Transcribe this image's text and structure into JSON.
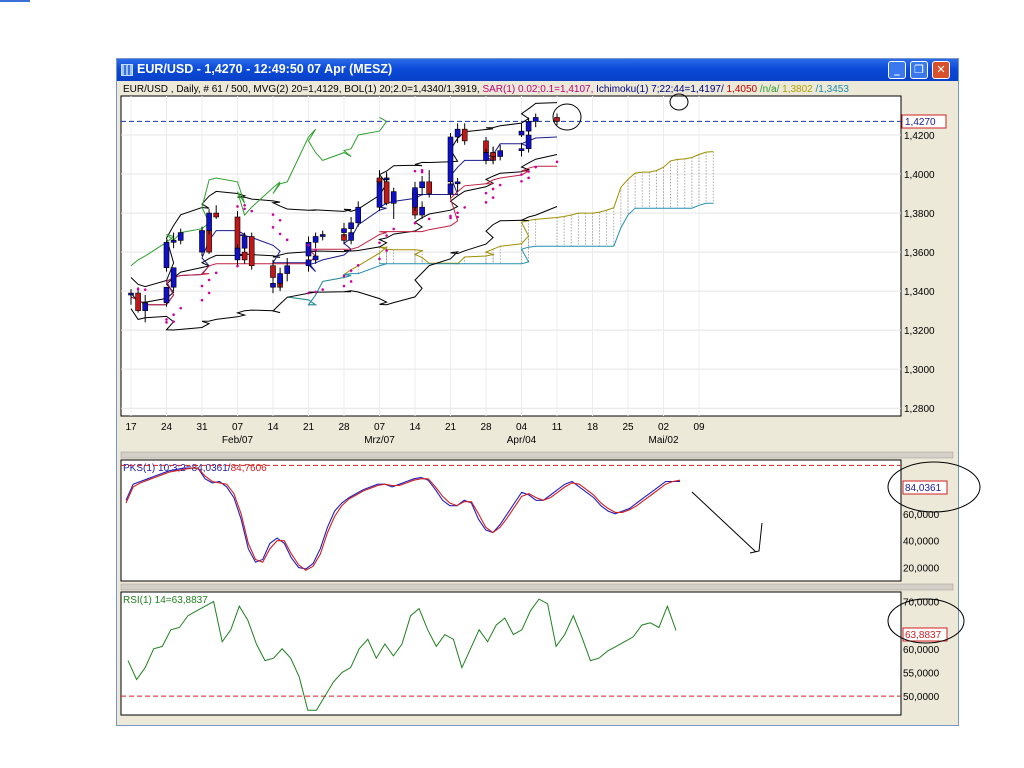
{
  "window": {
    "title": "EUR/USD - 1,4270 - 12:49:50  07 Apr (MESZ)",
    "buttons": {
      "minimize": "_",
      "maximize": "❐",
      "close": "✕"
    }
  },
  "main_chart": {
    "legend": [
      {
        "text": "EUR/USD , Daily, # 61 / 500, MVG(2) 20=1,4129, BOL(1) 20;2.0=1,4340/1,3919, ",
        "color": "#000000"
      },
      {
        "text": "SAR(1) 0.02;0.1=1,4107, ",
        "color": "#c0007a"
      },
      {
        "text": "Ichimoku(1) 7;22;44=1,4197/",
        "color": "#000080"
      },
      {
        "text": "1,4050",
        "color": "#c00000"
      },
      {
        "text": "/n/a/",
        "color": "#2a9a2a"
      },
      {
        "text": "1,3802",
        "color": "#b0a000"
      },
      {
        "text": "/1,3453",
        "color": "#1a8aa8"
      }
    ],
    "current_price": "1,4270",
    "y_ticks": [
      "1,4200",
      "1,4000",
      "1,3800",
      "1,3600",
      "1,3400",
      "1,3200",
      "1,3000",
      "1,2800"
    ],
    "x_ticks": [
      "17",
      "24",
      "31",
      "07",
      "14",
      "21",
      "28",
      "07",
      "14",
      "21",
      "28",
      "04",
      "11",
      "18",
      "25",
      "02",
      "09"
    ],
    "month_labels": [
      "Feb/07",
      "Mrz/07",
      "Apr/04",
      "Mai/02"
    ]
  },
  "stoch_panel": {
    "legend_main": "PKS(1) 10;3;2=84,0361/",
    "legend_signal": "84,7606",
    "current_value": "84,0361",
    "y_ticks": [
      "60,0000",
      "40,0000",
      "20,0000"
    ]
  },
  "rsi_panel": {
    "legend": "RSI(1) 14=63,8837",
    "current_value": "63,8837",
    "y_ticks": [
      "70,0000",
      "60,0000",
      "55,0000",
      "50,0000"
    ]
  },
  "colors": {
    "bull_candle": "#1010c8",
    "bear_candle": "#c01818",
    "sar": "#d000a0",
    "tenkan": "#1a1a8c",
    "kijun": "#c02040",
    "chikou": "#30a030",
    "span_a": "#a09000",
    "span_b": "#2090b0",
    "bollinger": "#000000",
    "stoch_k": "#2020c0",
    "stoch_d": "#d02020",
    "rsi": "#208020",
    "level_line": "#d02020",
    "price_line": "#1a3aa0"
  },
  "chart_data": [
    {
      "type": "candlestick",
      "title": "EUR/USD , Daily",
      "x": [
        "2007-01-17",
        "2007-01-18",
        "2007-01-19",
        "2007-01-22",
        "2007-01-23",
        "2007-01-24",
        "2007-01-25",
        "2007-01-26",
        "2007-01-29",
        "2007-01-30",
        "2007-01-31",
        "2007-02-01",
        "2007-02-02",
        "2007-02-05",
        "2007-02-06",
        "2007-02-07",
        "2007-02-08",
        "2007-02-09",
        "2007-02-12",
        "2007-02-13",
        "2007-02-14",
        "2007-02-15",
        "2007-02-16",
        "2007-02-19",
        "2007-02-20",
        "2007-02-21",
        "2007-02-22",
        "2007-02-23",
        "2007-02-26",
        "2007-02-27",
        "2007-02-28",
        "2007-03-01",
        "2007-03-02",
        "2007-03-05",
        "2007-03-06",
        "2007-03-07",
        "2007-03-08",
        "2007-03-09",
        "2007-03-12",
        "2007-03-13",
        "2007-03-14",
        "2007-03-15",
        "2007-03-16",
        "2007-03-19",
        "2007-03-20",
        "2007-03-21",
        "2007-03-22",
        "2007-03-23",
        "2007-03-26",
        "2007-03-27",
        "2007-03-28",
        "2007-03-29",
        "2007-03-30",
        "2007-04-02",
        "2007-04-03",
        "2007-04-04",
        "2007-04-05",
        "2007-04-06",
        "2007-04-09"
      ],
      "open": [
        1.338,
        1.339,
        1.33,
        1.334,
        1.342,
        1.352,
        1.365,
        1.366,
        1.37,
        1.371,
        1.36,
        1.371,
        1.38,
        1.378,
        1.36,
        1.356,
        1.362,
        1.368,
        1.353,
        1.347,
        1.342,
        1.344,
        1.349,
        1.353,
        1.356,
        1.358,
        1.365,
        1.368,
        1.369,
        1.366,
        1.37,
        1.372,
        1.375,
        1.383,
        1.397,
        1.398,
        1.396,
        1.385,
        1.391,
        1.379,
        1.383,
        1.393,
        1.396,
        1.39,
        1.395,
        1.396,
        1.419,
        1.423,
        1.417,
        1.411,
        1.407,
        1.411,
        1.409,
        1.412,
        1.413,
        1.42,
        1.422,
        1.427,
        1.429
      ],
      "high": [
        1.341,
        1.342,
        1.338,
        1.342,
        1.352,
        1.366,
        1.37,
        1.372,
        1.373,
        1.374,
        1.373,
        1.382,
        1.384,
        1.381,
        1.362,
        1.364,
        1.37,
        1.37,
        1.356,
        1.352,
        1.346,
        1.35,
        1.357,
        1.359,
        1.361,
        1.368,
        1.37,
        1.371,
        1.372,
        1.373,
        1.375,
        1.378,
        1.386,
        1.399,
        1.401,
        1.402,
        1.4,
        1.393,
        1.394,
        1.386,
        1.396,
        1.399,
        1.402,
        1.397,
        1.398,
        1.421,
        1.426,
        1.426,
        1.419,
        1.414,
        1.413,
        1.414,
        1.415,
        1.416,
        1.423,
        1.426,
        1.429,
        1.431,
        1.431
      ],
      "low": [
        1.333,
        1.329,
        1.324,
        1.332,
        1.34,
        1.35,
        1.362,
        1.364,
        1.366,
        1.359,
        1.358,
        1.369,
        1.377,
        1.359,
        1.354,
        1.353,
        1.36,
        1.351,
        1.343,
        1.34,
        1.339,
        1.341,
        1.345,
        1.35,
        1.354,
        1.356,
        1.362,
        1.366,
        1.364,
        1.364,
        1.368,
        1.37,
        1.373,
        1.381,
        1.394,
        1.394,
        1.384,
        1.377,
        1.377,
        1.377,
        1.381,
        1.389,
        1.388,
        1.388,
        1.391,
        1.394,
        1.416,
        1.415,
        1.409,
        1.405,
        1.405,
        1.406,
        1.407,
        1.409,
        1.411,
        1.419,
        1.42,
        1.424,
        1.425
      ],
      "close": [
        1.339,
        1.33,
        1.334,
        1.342,
        1.352,
        1.365,
        1.366,
        1.37,
        1.371,
        1.36,
        1.371,
        1.38,
        1.378,
        1.36,
        1.356,
        1.362,
        1.368,
        1.353,
        1.347,
        1.342,
        1.344,
        1.349,
        1.353,
        1.356,
        1.358,
        1.365,
        1.368,
        1.369,
        1.366,
        1.37,
        1.372,
        1.375,
        1.383,
        1.397,
        1.398,
        1.396,
        1.385,
        1.391,
        1.379,
        1.383,
        1.393,
        1.396,
        1.39,
        1.395,
        1.396,
        1.419,
        1.423,
        1.417,
        1.411,
        1.407,
        1.411,
        1.409,
        1.412,
        1.413,
        1.42,
        1.422,
        1.427,
        1.429,
        1.427
      ],
      "ylim": [
        1.276,
        1.44
      ],
      "ylabel": "",
      "xlabel": ""
    },
    {
      "type": "line",
      "title": "PKS(1) 10;3;2",
      "series": [
        {
          "name": "84,0361",
          "values": [
            70,
            82,
            84,
            86,
            88,
            90,
            92,
            93,
            94,
            94,
            94,
            86,
            83,
            84,
            80,
            72,
            56,
            34,
            24,
            26,
            38,
            42,
            38,
            27,
            20,
            19,
            23,
            34,
            50,
            62,
            68,
            72,
            75,
            78,
            80,
            82,
            82,
            80,
            82,
            84,
            86,
            87,
            85,
            78,
            70,
            66,
            66,
            70,
            68,
            56,
            48,
            46,
            52,
            60,
            68,
            76,
            74,
            70,
            70,
            74,
            78,
            82,
            84,
            80,
            76,
            72,
            66,
            62,
            60,
            62,
            64,
            68,
            72,
            76,
            80,
            84,
            84,
            84
          ]
        },
        {
          "name": "84,7606",
          "values": [
            68,
            80,
            83,
            85,
            87,
            89,
            91,
            92,
            93,
            94,
            94,
            88,
            84,
            83,
            82,
            75,
            60,
            38,
            26,
            24,
            34,
            40,
            40,
            30,
            22,
            18,
            21,
            30,
            46,
            58,
            66,
            71,
            74,
            77,
            79,
            81,
            82,
            81,
            81,
            83,
            85,
            86,
            86,
            80,
            73,
            68,
            66,
            69,
            69,
            60,
            50,
            46,
            50,
            57,
            65,
            73,
            75,
            72,
            70,
            72,
            76,
            80,
            83,
            82,
            78,
            74,
            68,
            64,
            61,
            61,
            63,
            66,
            70,
            74,
            78,
            82,
            84,
            85
          ]
        }
      ],
      "ylim": [
        10,
        100
      ]
    },
    {
      "type": "line",
      "title": "RSI(1) 14",
      "series": [
        {
          "name": "RSI",
          "values": [
            57.5,
            53.5,
            56,
            60,
            60.5,
            64,
            64.5,
            67,
            68,
            69,
            70,
            61.5,
            64,
            69,
            66,
            61,
            57.5,
            58,
            60,
            58,
            54,
            47,
            47,
            50,
            53,
            55,
            56,
            60,
            62,
            58,
            61,
            58.5,
            61,
            67,
            68.5,
            64,
            60.5,
            63,
            62,
            56,
            60,
            64,
            61.5,
            65,
            66.5,
            63,
            64,
            68,
            70.5,
            69.5,
            60.5,
            63,
            67,
            62.5,
            57.5,
            58,
            59.5,
            60.5,
            61.5,
            62.5,
            65,
            65.5,
            64.5,
            69,
            63.8837
          ]
        }
      ],
      "ylim": [
        46,
        72
      ]
    }
  ]
}
